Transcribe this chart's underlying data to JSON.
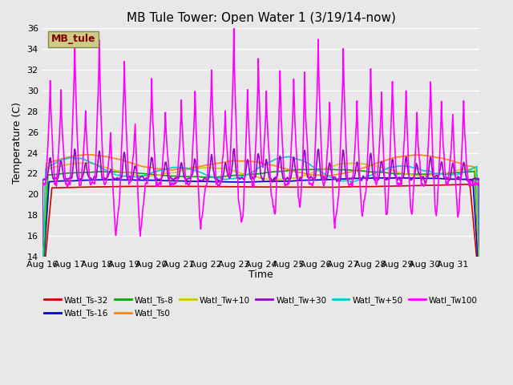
{
  "title": "MB Tule Tower: Open Water 1 (3/19/14-now)",
  "xlabel": "Time",
  "ylabel": "Temperature (C)",
  "ylim": [
    14,
    36
  ],
  "yticks": [
    14,
    16,
    18,
    20,
    22,
    24,
    26,
    28,
    30,
    32,
    34,
    36
  ],
  "xtick_labels": [
    "Aug 16",
    "Aug 17",
    "Aug 18",
    "Aug 19",
    "Aug 20",
    "Aug 21",
    "Aug 22",
    "Aug 23",
    "Aug 24",
    "Aug 25",
    "Aug 26",
    "Aug 27",
    "Aug 28",
    "Aug 29",
    "Aug 30",
    "Aug 31"
  ],
  "series": {
    "Watl_Ts-32": {
      "color": "#cc0000",
      "lw": 1.2
    },
    "Watl_Ts-16": {
      "color": "#0000cc",
      "lw": 1.2
    },
    "Watl_Ts-8": {
      "color": "#00aa00",
      "lw": 1.2
    },
    "Watl_Ts0": {
      "color": "#ff8800",
      "lw": 1.2
    },
    "Watl_Tw+10": {
      "color": "#cccc00",
      "lw": 1.2
    },
    "Watl_Tw+30": {
      "color": "#9900cc",
      "lw": 1.2
    },
    "Watl_Tw+50": {
      "color": "#00cccc",
      "lw": 1.2
    },
    "Watl_Tw100": {
      "color": "#ff00ff",
      "lw": 1.2
    }
  },
  "legend_label": "MB_tule",
  "legend_box_facecolor": "#cccc88",
  "legend_box_edgecolor": "#888844",
  "legend_text_color": "#880000",
  "bg_color": "#e8e8e8",
  "grid_color": "#ffffff"
}
